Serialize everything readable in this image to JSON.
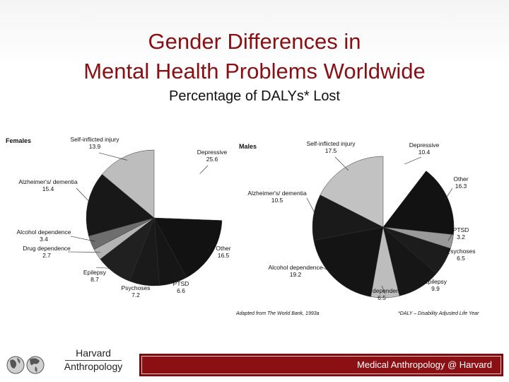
{
  "title": {
    "line1": "Gender Differences in",
    "line2": "Mental Health Problems Worldwide",
    "subtitle": "Percentage of DALYs* Lost"
  },
  "chart_data": [
    {
      "type": "pie",
      "title": "Females",
      "slices": [
        {
          "label": "Depressive",
          "value": 25.6,
          "color": "#ffffff"
        },
        {
          "label": "Other",
          "value": 16.5,
          "color": "#121212"
        },
        {
          "label": "PTSD",
          "value": 6.6,
          "color": "#161616"
        },
        {
          "label": "Psychoses",
          "value": 7.2,
          "color": "#1a1a1a"
        },
        {
          "label": "Epilepsy",
          "value": 8.7,
          "color": "#202020"
        },
        {
          "label": "Drug dependence",
          "value": 2.7,
          "color": "#b4b4b4"
        },
        {
          "label": "Alcohol dependence",
          "value": 3.4,
          "color": "#6e6e6e"
        },
        {
          "label": "Alzheimer's/ dementia",
          "value": 15.4,
          "color": "#181818"
        },
        {
          "label": "Self-inflicted injury",
          "value": 13.9,
          "color": "#bdbdbd"
        }
      ]
    },
    {
      "type": "pie",
      "title": "Males",
      "slices": [
        {
          "label": "Depressive",
          "value": 10.4,
          "color": "#ffffff"
        },
        {
          "label": "Other",
          "value": 16.3,
          "color": "#121212"
        },
        {
          "label": "PTSD",
          "value": 3.2,
          "color": "#9a9a9a"
        },
        {
          "label": "Psychoses",
          "value": 6.5,
          "color": "#1c1c1c"
        },
        {
          "label": "Epilepsy",
          "value": 9.9,
          "color": "#161616"
        },
        {
          "label": "Drug dependence",
          "value": 6.5,
          "color": "#bdbdbd"
        },
        {
          "label": "Alcohol dependence",
          "value": 19.2,
          "color": "#141414"
        },
        {
          "label": "Alzheimer's/ dementia",
          "value": 10.5,
          "color": "#1a1a1a"
        },
        {
          "label": "Self-inflicted injury",
          "value": 17.5,
          "color": "#c2c2c2"
        }
      ]
    }
  ],
  "source_note": "Adapted from The World Bank, 1993a",
  "daly_note": "*DALY – Disability Adjusted Life Year",
  "footer": {
    "brand_line1": "Harvard",
    "brand_line2": "Anthropology",
    "bar_text": "Medical Anthropology @ Harvard"
  }
}
